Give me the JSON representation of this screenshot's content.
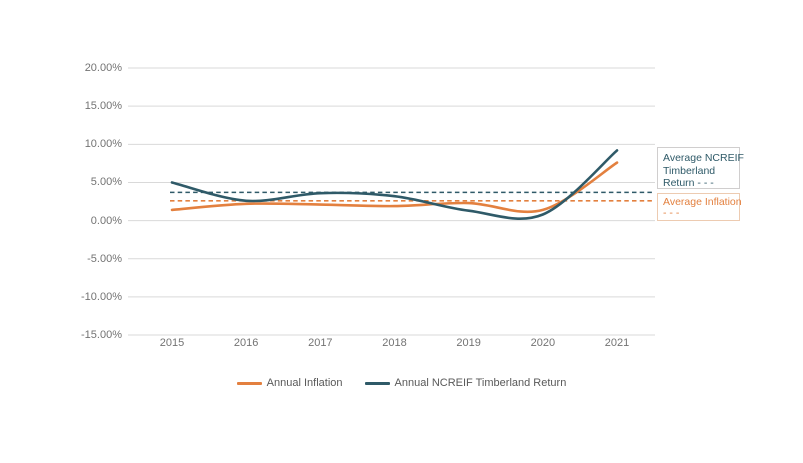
{
  "page": {
    "background": "#ffffff"
  },
  "chart_data": {
    "type": "line",
    "smooth": true,
    "grid": true,
    "legend_position": "bottom",
    "categories": [
      "2015",
      "2016",
      "2017",
      "2018",
      "2019",
      "2020",
      "2021"
    ],
    "series": [
      {
        "name": "Annual Inflation",
        "color": "#E3803F",
        "values": [
          1.4,
          2.2,
          2.1,
          1.9,
          2.3,
          1.4,
          7.6
        ],
        "average": 2.6,
        "average_line_style": "dashed"
      },
      {
        "name": "Annual NCREIF Timberland Return",
        "color": "#2F5A68",
        "values": [
          5.0,
          2.6,
          3.6,
          3.2,
          1.3,
          0.8,
          9.2
        ],
        "average": 3.7,
        "average_line_style": "dashed"
      }
    ],
    "y_axis": {
      "tick_labels": [
        "20.00%",
        "15.00%",
        "10.00%",
        "5.00%",
        "0.00%",
        "-5.00%",
        "-10.00%",
        "-15.00%"
      ],
      "tick_values": [
        20,
        15,
        10,
        5,
        0,
        -5,
        -10,
        -15
      ]
    },
    "ylim": [
      -15,
      20
    ],
    "xlabel": "",
    "ylabel": "",
    "title": ""
  },
  "legend": {
    "items": [
      {
        "label": "Annual Inflation"
      },
      {
        "label": "Annual NCREIF Timberland Return"
      }
    ]
  },
  "annotations": {
    "ncreif_box": {
      "lines": [
        "Average NCREIF",
        "Timberland",
        "Return - - -"
      ],
      "text_color": "#2F5A68",
      "border_color": "#D0CECE"
    },
    "inflation_box": {
      "lines": [
        "Average Inflation",
        "- - -"
      ],
      "text_color": "#E3803F",
      "border_color": "#EDCBB1"
    }
  },
  "colors": {
    "grid": "#D9D9D9",
    "axis_text": "#737373",
    "legend_text": "#595959",
    "inflation": "#E3803F",
    "ncreif": "#2F5A68"
  }
}
